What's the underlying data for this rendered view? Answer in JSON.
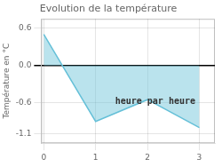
{
  "chart_data": {
    "type": "line",
    "title": "Evolution de la température",
    "ylabel": "Température en °C",
    "x": [
      0,
      1.0,
      2.0,
      3.0
    ],
    "values": [
      0.5,
      -0.9,
      -0.55,
      -1.0
    ],
    "color": "#66c0d8",
    "xlim": [
      -0.05,
      3.3
    ],
    "xticks": [
      0,
      1,
      2,
      3
    ],
    "ylim": [
      -1.25,
      0.75
    ],
    "yticks": [
      -1.1,
      -0.6,
      {
        "value": 0.0,
        "label": "0.0"
      },
      0.6
    ],
    "grid": true,
    "annotations": [
      {
        "text": "heure par heure",
        "x": 2.15,
        "y": -0.58
      }
    ]
  }
}
